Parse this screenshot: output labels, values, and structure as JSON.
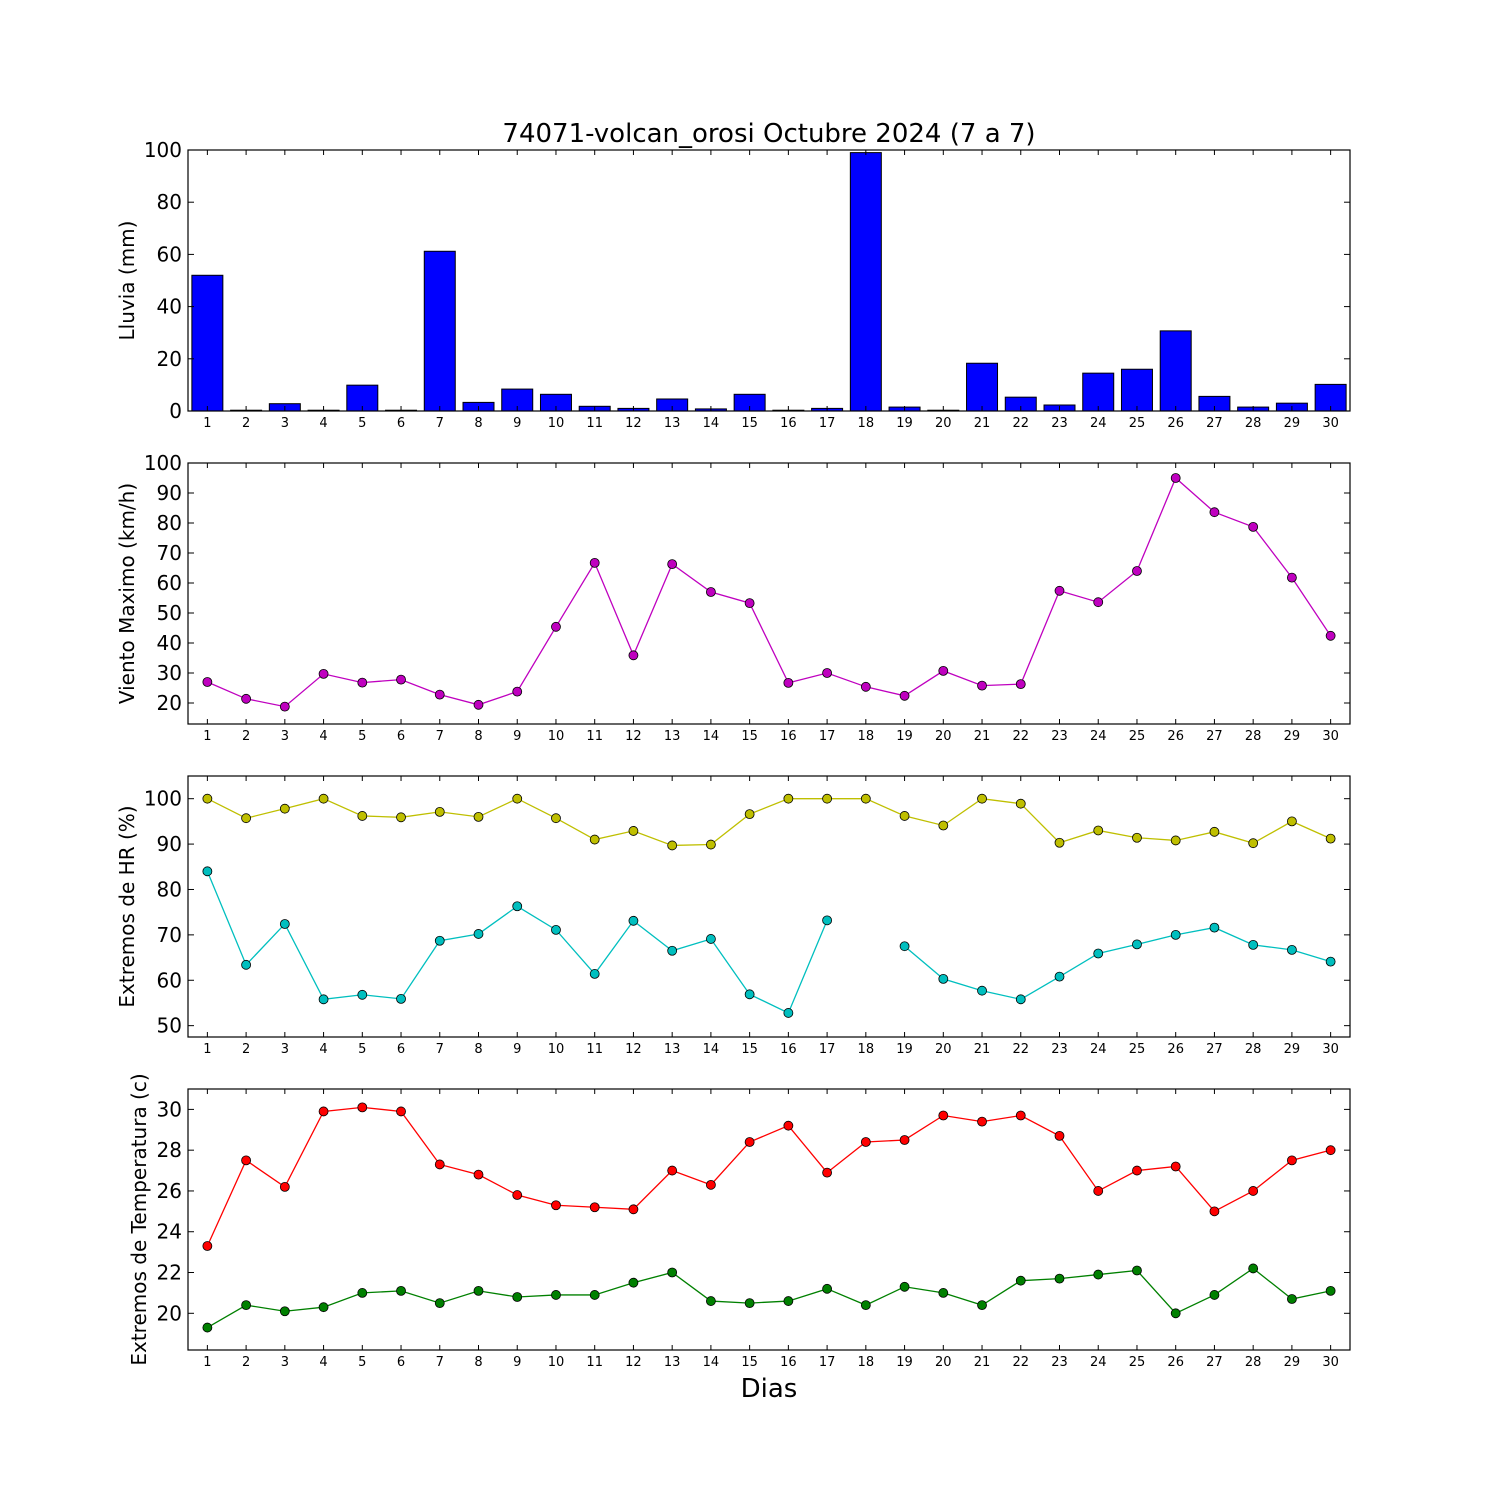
{
  "title": "74071-volcan_orosi Octubre 2024  (7 a 7)",
  "xlabel": "Dias",
  "colors": {
    "rain": "#0000ff",
    "wind": "#bf00bf",
    "hr_max": "#bfbf00",
    "hr_min": "#00bfbf",
    "temp_max": "#ff0000",
    "temp_min": "#008000"
  },
  "chart_data": [
    {
      "type": "bar",
      "ylabel": "Lluvia (mm)",
      "ylim": [
        0,
        100
      ],
      "yticks": [
        0,
        20,
        40,
        60,
        80,
        100
      ],
      "categories": [
        "1",
        "2",
        "3",
        "4",
        "5",
        "6",
        "7",
        "8",
        "9",
        "10",
        "11",
        "12",
        "13",
        "14",
        "15",
        "16",
        "17",
        "18",
        "19",
        "20",
        "21",
        "22",
        "23",
        "24",
        "25",
        "26",
        "27",
        "28",
        "29",
        "30"
      ],
      "values": [
        52.0,
        0.3,
        2.8,
        0.3,
        9.9,
        0.3,
        61.2,
        3.3,
        8.4,
        6.4,
        1.8,
        1.0,
        4.6,
        0.8,
        6.4,
        0.3,
        1.0,
        99.0,
        1.5,
        0.3,
        18.3,
        5.3,
        2.3,
        14.5,
        16.0,
        30.7,
        5.6,
        1.5,
        3.0,
        10.2
      ]
    },
    {
      "type": "line",
      "ylabel": "Viento Maximo (km/h)",
      "ylim": [
        13,
        100
      ],
      "yticks": [
        20,
        30,
        40,
        50,
        60,
        70,
        80,
        90,
        100
      ],
      "categories": [
        "1",
        "2",
        "3",
        "4",
        "5",
        "6",
        "7",
        "8",
        "9",
        "10",
        "11",
        "12",
        "13",
        "14",
        "15",
        "16",
        "17",
        "18",
        "19",
        "20",
        "21",
        "22",
        "23",
        "24",
        "25",
        "26",
        "27",
        "28",
        "29",
        "30"
      ],
      "series": [
        {
          "color_key": "wind",
          "values": [
            27.0,
            21.4,
            18.8,
            29.7,
            26.8,
            27.8,
            22.8,
            19.4,
            23.8,
            45.4,
            66.7,
            35.9,
            66.3,
            57.0,
            53.3,
            26.7,
            30.0,
            25.4,
            22.4,
            30.7,
            25.8,
            26.3,
            57.4,
            53.6,
            64.0,
            95.0,
            83.6,
            78.7,
            61.8,
            42.4
          ]
        }
      ]
    },
    {
      "type": "line",
      "ylabel": "Extremos de HR (%)",
      "ylim": [
        47.5,
        105
      ],
      "yticks": [
        50,
        60,
        70,
        80,
        90,
        100
      ],
      "categories": [
        "1",
        "2",
        "3",
        "4",
        "5",
        "6",
        "7",
        "8",
        "9",
        "10",
        "11",
        "12",
        "13",
        "14",
        "15",
        "16",
        "17",
        "18",
        "19",
        "20",
        "21",
        "22",
        "23",
        "24",
        "25",
        "26",
        "27",
        "28",
        "29",
        "30"
      ],
      "series": [
        {
          "color_key": "hr_max",
          "values": [
            100.0,
            95.7,
            97.8,
            100.0,
            96.2,
            95.9,
            97.1,
            96.0,
            100.0,
            95.7,
            91.0,
            92.9,
            89.7,
            89.9,
            96.6,
            100.0,
            100.0,
            100.0,
            96.2,
            94.1,
            100.0,
            98.9,
            90.3,
            93.0,
            91.4,
            90.8,
            92.7,
            90.2,
            95.0,
            91.2
          ]
        },
        {
          "color_key": "hr_min",
          "values": [
            84.0,
            63.4,
            72.4,
            55.8,
            56.8,
            55.9,
            68.7,
            70.2,
            76.3,
            71.1,
            61.4,
            73.1,
            66.5,
            69.1,
            56.9,
            52.8,
            73.2,
            null,
            67.5,
            60.3,
            57.7,
            55.8,
            60.8,
            65.9,
            67.9,
            70.0,
            71.6,
            67.8,
            66.7,
            64.1
          ]
        }
      ]
    },
    {
      "type": "line",
      "ylabel": "Extremos de Temperatura (c)",
      "ylim": [
        18.2,
        31
      ],
      "yticks": [
        20,
        22,
        24,
        26,
        28,
        30
      ],
      "categories": [
        "1",
        "2",
        "3",
        "4",
        "5",
        "6",
        "7",
        "8",
        "9",
        "10",
        "11",
        "12",
        "13",
        "14",
        "15",
        "16",
        "17",
        "18",
        "19",
        "20",
        "21",
        "22",
        "23",
        "24",
        "25",
        "26",
        "27",
        "28",
        "29",
        "30"
      ],
      "series": [
        {
          "color_key": "temp_max",
          "values": [
            23.3,
            27.5,
            26.2,
            29.9,
            30.1,
            29.9,
            27.3,
            26.8,
            25.8,
            25.3,
            25.2,
            25.1,
            27.0,
            26.3,
            28.4,
            29.2,
            26.9,
            28.4,
            28.5,
            29.7,
            29.4,
            29.7,
            28.7,
            26.0,
            27.0,
            27.2,
            25.0,
            26.0,
            27.5,
            28.0
          ]
        },
        {
          "color_key": "temp_min",
          "values": [
            19.3,
            20.4,
            20.1,
            20.3,
            21.0,
            21.1,
            20.5,
            21.1,
            20.8,
            20.9,
            20.9,
            21.5,
            22.0,
            20.6,
            20.5,
            20.6,
            21.2,
            20.4,
            21.3,
            21.0,
            20.4,
            21.6,
            21.7,
            21.9,
            22.1,
            20.0,
            20.9,
            22.2,
            20.7,
            21.1
          ]
        }
      ]
    }
  ]
}
